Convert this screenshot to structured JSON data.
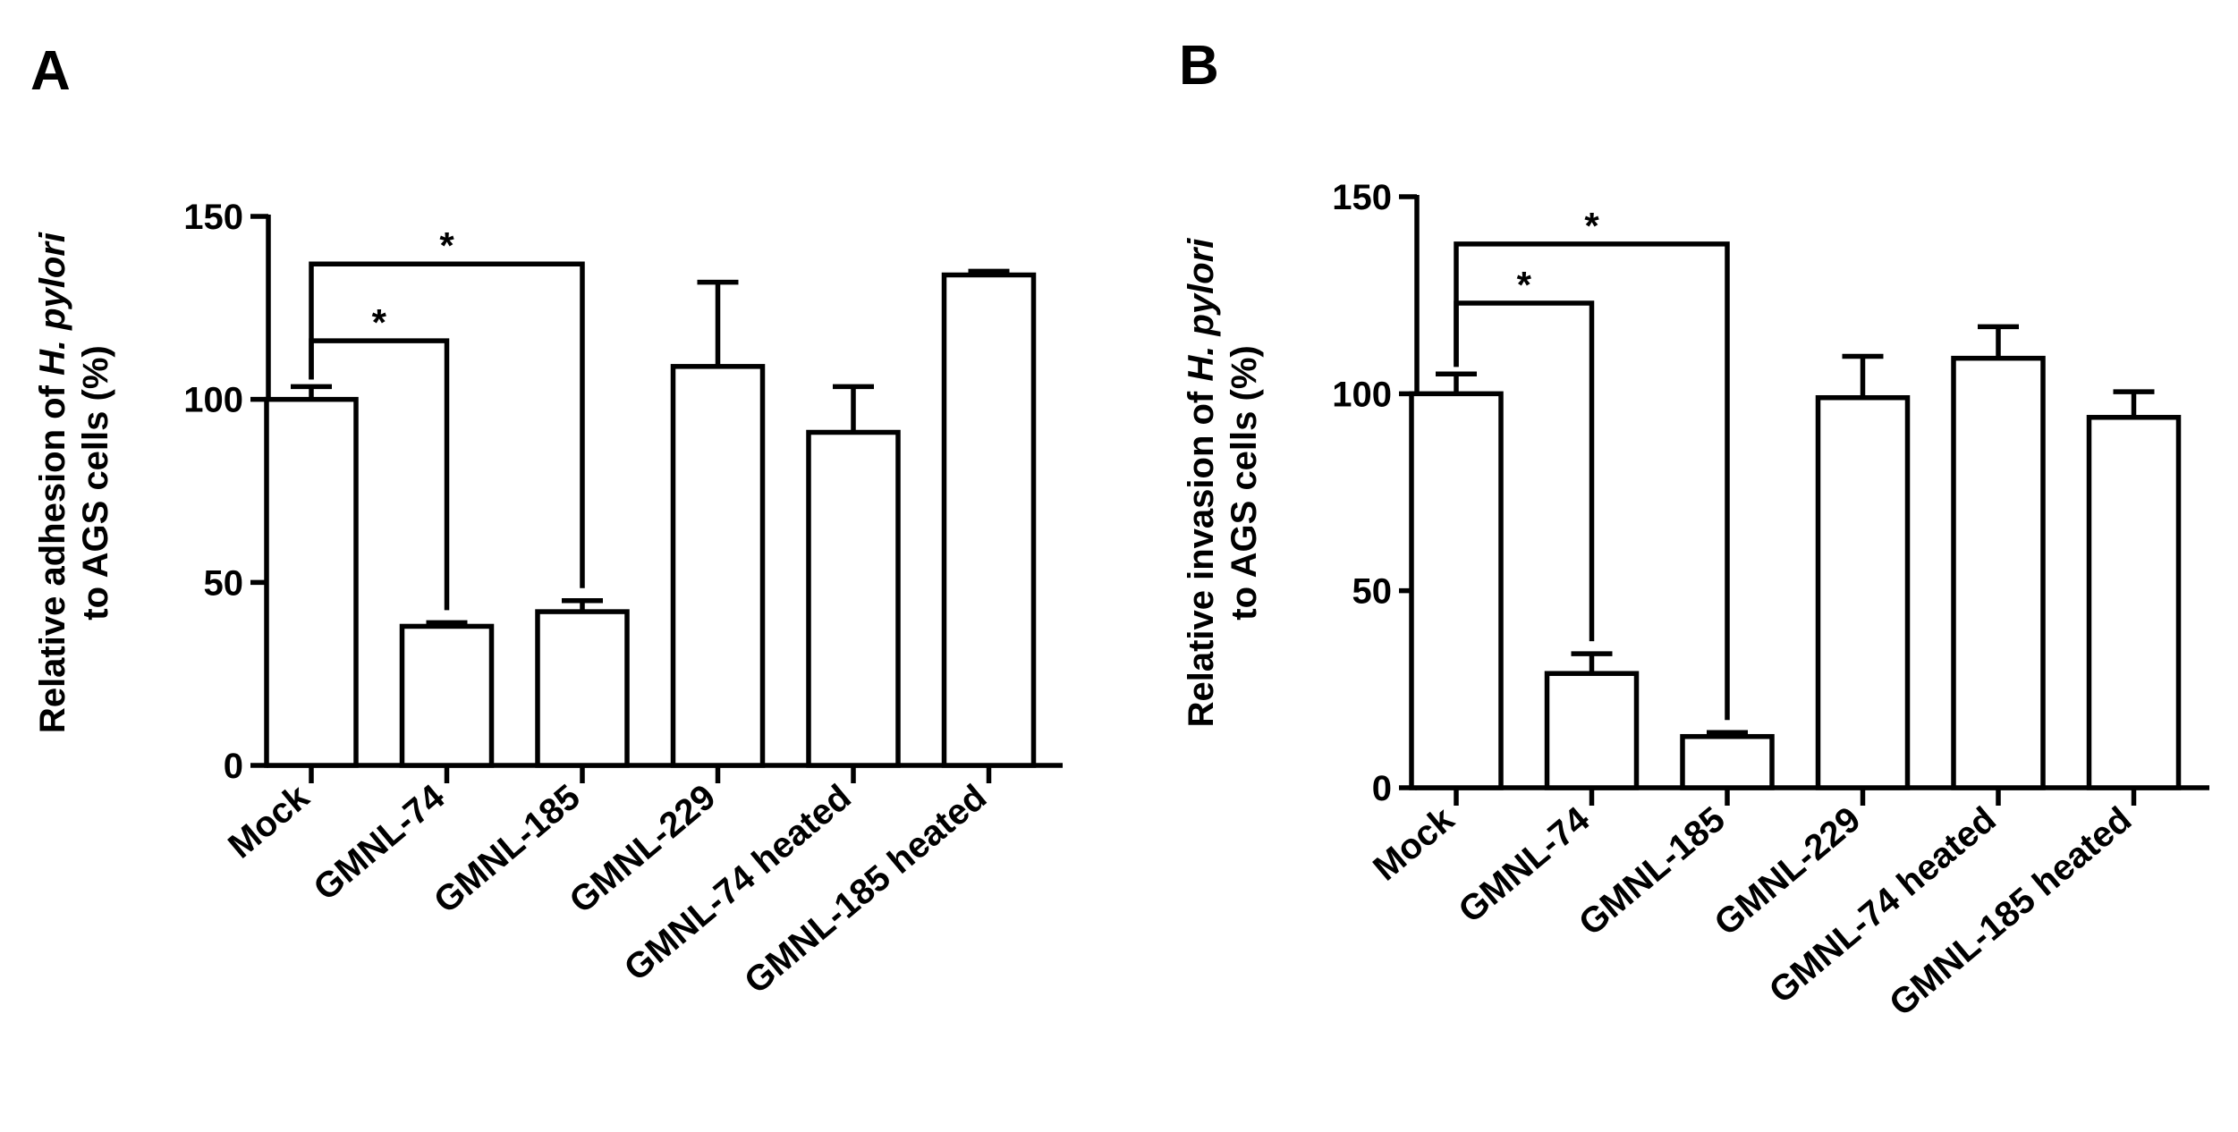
{
  "chart_data": [
    {
      "panel": "A",
      "type": "bar",
      "ylabel_line1_prefix": "Relative adhesion of ",
      "ylabel_line1_italic": "H. pylori",
      "ylabel_line2": "to AGS cells  (%)",
      "ylim": [
        0,
        150
      ],
      "yticks": [
        0,
        50,
        100,
        150
      ],
      "categories": [
        "Mock",
        "GMNL-74",
        "GMNL-185",
        "GMNL-229",
        "GMNL-74 heated",
        "GMNL-185 heated"
      ],
      "values": [
        100,
        38,
        42,
        109,
        91,
        134
      ],
      "errors": [
        3.5,
        1,
        3,
        23,
        12.5,
        1
      ],
      "significance": [
        {
          "from": "Mock",
          "to": "GMNL-74",
          "label": "*",
          "level": 116
        },
        {
          "from": "Mock",
          "to": "GMNL-185",
          "label": "*",
          "level": 137
        }
      ]
    },
    {
      "panel": "B",
      "type": "bar",
      "ylabel_line1_prefix": "Relative invasion of ",
      "ylabel_line1_italic": "H. pylori",
      "ylabel_line2": "to AGS cells  (%)",
      "ylim": [
        0,
        150
      ],
      "yticks": [
        0,
        50,
        100,
        150
      ],
      "categories": [
        "Mock",
        "GMNL-74",
        "GMNL-185",
        "GMNL-229",
        "GMNL-74 heated",
        "GMNL-185 heated"
      ],
      "values": [
        100,
        29,
        13,
        99,
        109,
        94
      ],
      "errors": [
        5,
        5,
        1,
        10.5,
        8,
        6.5
      ],
      "significance": [
        {
          "from": "Mock",
          "to": "GMNL-74",
          "label": "*",
          "level": 123
        },
        {
          "from": "Mock",
          "to": "GMNL-185",
          "label": "*",
          "level": 138
        }
      ]
    }
  ]
}
